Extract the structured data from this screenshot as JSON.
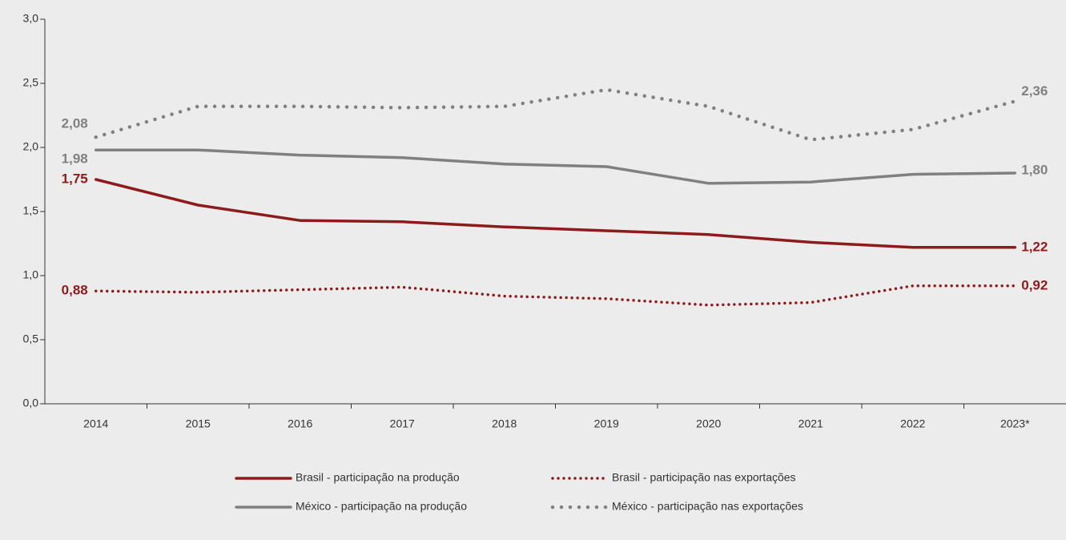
{
  "chart_data": {
    "type": "line",
    "categories": [
      "2014",
      "2015",
      "2016",
      "2017",
      "2018",
      "2019",
      "2020",
      "2021",
      "2022",
      "2023*"
    ],
    "ylim": [
      0,
      3.0
    ],
    "yticks": [
      {
        "value": 0,
        "label": "0,0"
      },
      {
        "value": 0.5,
        "label": "0,5"
      },
      {
        "value": 1.0,
        "label": "1,0"
      },
      {
        "value": 1.5,
        "label": "1,5"
      },
      {
        "value": 2.0,
        "label": "2,0"
      },
      {
        "value": 2.5,
        "label": "2,5"
      },
      {
        "value": 3.0,
        "label": "3,0"
      }
    ],
    "series": [
      {
        "name": "Brasil - participação na produção",
        "color": "#8e1b1b",
        "style": "solid",
        "values": [
          1.75,
          1.55,
          1.43,
          1.42,
          1.38,
          1.35,
          1.32,
          1.26,
          1.22,
          1.22
        ],
        "value_labels": [
          "1,75",
          null,
          null,
          null,
          null,
          null,
          null,
          null,
          null,
          "1,22"
        ]
      },
      {
        "name": "Brasil - participação nas exportações",
        "color": "#8e1b1b",
        "style": "dotted",
        "values": [
          0.88,
          0.87,
          0.89,
          0.91,
          0.84,
          0.82,
          0.77,
          0.79,
          0.92,
          0.92
        ],
        "value_labels": [
          "0,88",
          null,
          null,
          null,
          null,
          null,
          null,
          null,
          null,
          "0,92"
        ]
      },
      {
        "name": "México - participação na produção",
        "color": "#808080",
        "style": "solid",
        "values": [
          1.98,
          1.98,
          1.94,
          1.92,
          1.87,
          1.85,
          1.72,
          1.73,
          1.79,
          1.8
        ],
        "value_labels": [
          "1,98",
          null,
          null,
          null,
          null,
          null,
          null,
          null,
          null,
          "1,80"
        ]
      },
      {
        "name": "México - participação nas exportações",
        "color": "#808080",
        "style": "dotted",
        "values": [
          2.08,
          2.32,
          2.32,
          2.31,
          2.32,
          2.45,
          2.32,
          2.06,
          2.14,
          2.36
        ],
        "value_labels": [
          "2,08",
          null,
          null,
          null,
          null,
          null,
          null,
          null,
          null,
          "2,36"
        ]
      }
    ]
  }
}
